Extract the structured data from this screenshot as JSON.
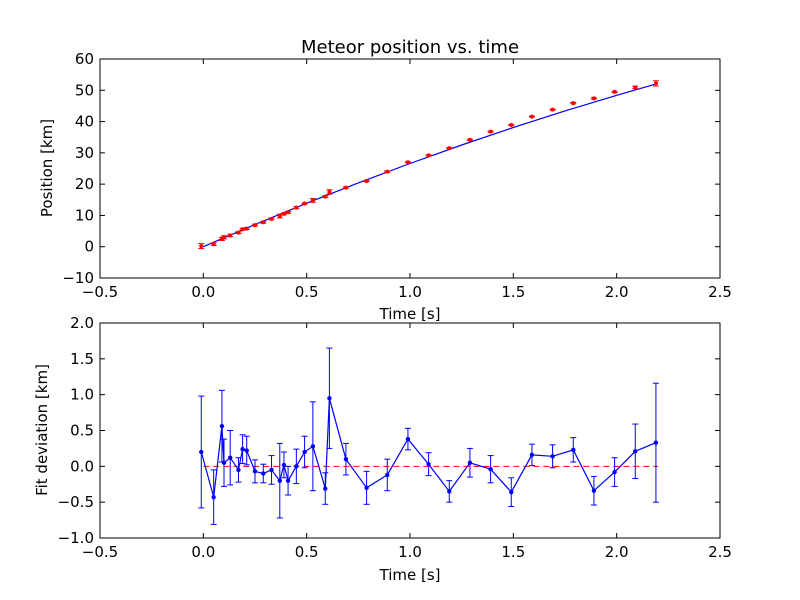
{
  "chart_data": [
    {
      "type": "scatter",
      "title": "Meteor position vs. time",
      "xlabel": "Time [s]",
      "ylabel": "Position [km]",
      "xlim": [
        -0.5,
        2.5
      ],
      "ylim": [
        -10,
        60
      ],
      "xticks": [
        "−0.5",
        "0.0",
        "0.5",
        "1.0",
        "1.5",
        "2.0",
        "2.5"
      ],
      "yticks": [
        "−10",
        "0",
        "10",
        "20",
        "30",
        "40",
        "50",
        "60"
      ],
      "grid": false,
      "colors": {
        "points": "#ff0000",
        "fit": "#0000ff"
      },
      "series": [
        {
          "style": "points-with-errorbars",
          "x": [
            -0.01,
            0.05,
            0.09,
            0.1,
            0.13,
            0.17,
            0.19,
            0.21,
            0.25,
            0.29,
            0.33,
            0.37,
            0.39,
            0.41,
            0.45,
            0.49,
            0.53,
            0.59,
            0.61,
            0.69,
            0.79,
            0.89,
            0.99,
            1.09,
            1.19,
            1.29,
            1.39,
            1.49,
            1.59,
            1.69,
            1.79,
            1.89,
            1.99,
            2.09,
            2.19
          ],
          "y": [
            0.2,
            0.8,
            2.5,
            3.0,
            3.6,
            4.5,
            5.6,
            5.8,
            6.9,
            7.8,
            8.9,
            9.8,
            10.5,
            11.0,
            12.5,
            13.8,
            14.8,
            16.0,
            17.5,
            18.9,
            21.0,
            24.0,
            27.0,
            29.2,
            31.5,
            34.2,
            36.8,
            38.9,
            41.6,
            43.8,
            45.9,
            47.4,
            49.5,
            50.9,
            52.2
          ],
          "err": [
            0.8,
            0.4,
            0.5,
            0.5,
            0.4,
            0.3,
            0.3,
            0.3,
            0.3,
            0.3,
            0.3,
            0.6,
            0.3,
            0.3,
            0.3,
            0.2,
            0.6,
            0.3,
            0.7,
            0.2,
            0.2,
            0.2,
            0.15,
            0.15,
            0.15,
            0.2,
            0.2,
            0.2,
            0.15,
            0.15,
            0.2,
            0.2,
            0.2,
            0.4,
            0.85
          ]
        },
        {
          "style": "fit-line",
          "x": [
            0.0,
            0.25,
            0.5,
            0.75,
            1.0,
            1.25,
            1.5,
            1.75,
            2.0,
            2.2
          ],
          "y": [
            0.0,
            7.1,
            13.9,
            20.4,
            26.6,
            32.5,
            38.1,
            43.4,
            48.4,
            52.2
          ]
        }
      ]
    },
    {
      "type": "line",
      "title": "",
      "xlabel": "Time [s]",
      "ylabel": "Fit deviation [km]",
      "xlim": [
        -0.5,
        2.5
      ],
      "ylim": [
        -1.0,
        2.0
      ],
      "xticks": [
        "−0.5",
        "0.0",
        "0.5",
        "1.0",
        "1.5",
        "2.0",
        "2.5"
      ],
      "yticks": [
        "−1.0",
        "−0.5",
        "0.0",
        "0.5",
        "1.0",
        "1.5",
        "2.0"
      ],
      "grid": false,
      "colors": {
        "line": "#0000ff",
        "zero": "#ff0000"
      },
      "zero_line": {
        "y": 0.0,
        "x": [
          0.0,
          2.2
        ],
        "style": "dashed"
      },
      "series": [
        {
          "style": "line-points-errorbars",
          "x": [
            -0.01,
            0.05,
            0.09,
            0.1,
            0.13,
            0.17,
            0.19,
            0.21,
            0.25,
            0.29,
            0.33,
            0.37,
            0.39,
            0.41,
            0.45,
            0.49,
            0.53,
            0.59,
            0.61,
            0.69,
            0.79,
            0.89,
            0.99,
            1.09,
            1.19,
            1.29,
            1.39,
            1.49,
            1.59,
            1.69,
            1.79,
            1.89,
            1.99,
            2.09,
            2.19
          ],
          "y": [
            0.2,
            -0.43,
            0.56,
            0.05,
            0.12,
            -0.05,
            0.24,
            0.22,
            -0.07,
            -0.1,
            -0.05,
            -0.2,
            0.02,
            -0.2,
            0.0,
            0.2,
            0.28,
            -0.31,
            0.95,
            0.1,
            -0.3,
            -0.12,
            0.38,
            0.03,
            -0.35,
            0.05,
            -0.04,
            -0.36,
            0.16,
            0.14,
            0.23,
            -0.34,
            -0.08,
            0.21,
            0.33
          ],
          "err": [
            0.78,
            0.38,
            0.5,
            0.33,
            0.38,
            0.17,
            0.2,
            0.2,
            0.16,
            0.13,
            0.2,
            0.52,
            0.18,
            0.2,
            0.24,
            0.22,
            0.62,
            0.22,
            0.7,
            0.22,
            0.23,
            0.22,
            0.15,
            0.16,
            0.15,
            0.2,
            0.19,
            0.2,
            0.15,
            0.16,
            0.17,
            0.2,
            0.2,
            0.38,
            0.83
          ]
        }
      ]
    }
  ]
}
